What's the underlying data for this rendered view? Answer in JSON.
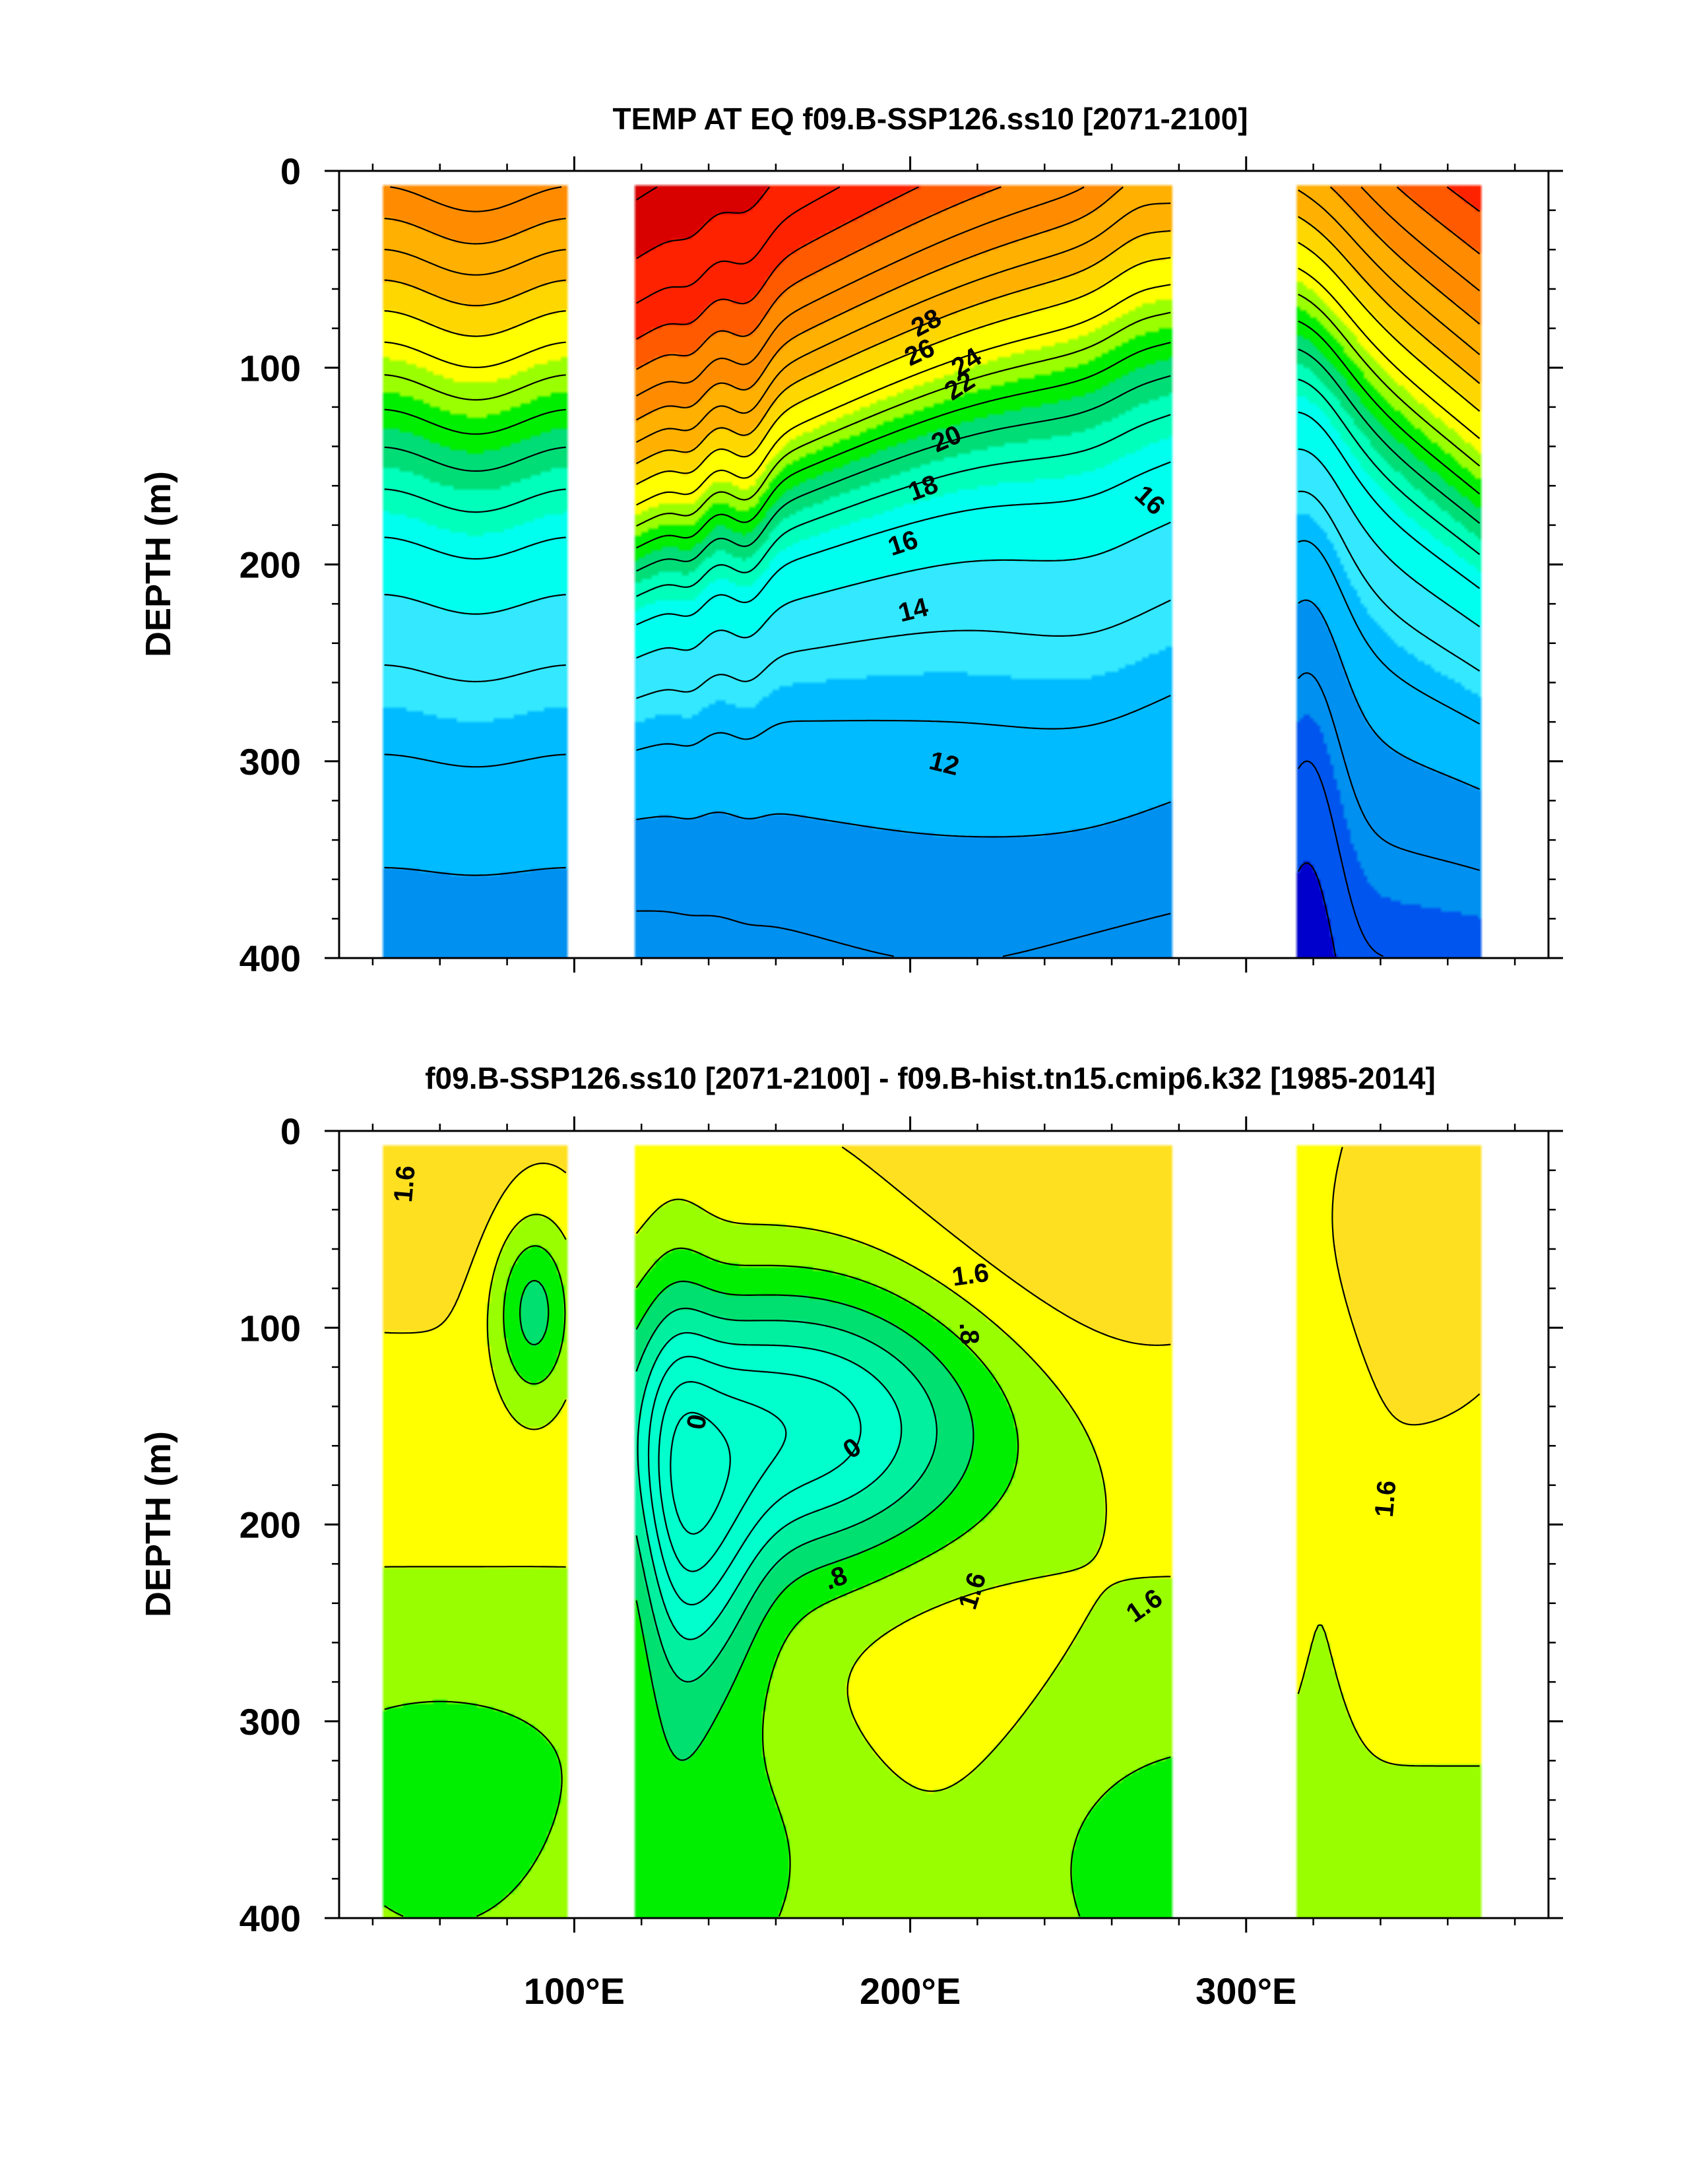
{
  "chart_data": [
    {
      "type": "contour",
      "title": "TEMP AT EQ f09.B-SSP126.ss10 [2071-2100]",
      "xlabel": "",
      "ylabel": "DEPTH (m)",
      "xlim": [
        30,
        390
      ],
      "ylim": [
        400,
        0
      ],
      "x_ticks": [
        100,
        200,
        300
      ],
      "x_tick_labels": [
        "100°E",
        "200°E",
        "300°E"
      ],
      "y_ticks": [
        0,
        100,
        200,
        300,
        400
      ],
      "y_tick_labels": [
        "0",
        "100",
        "200",
        "300",
        "400"
      ],
      "land_gaps": [
        [
          98,
          118
        ],
        [
          278,
          315
        ]
      ],
      "ocean_extent": [
        [
          43,
          98
        ],
        [
          118,
          278
        ],
        [
          315,
          370
        ]
      ],
      "contour_interval": 1,
      "contour_labels": [
        "28",
        "26",
        "24",
        "22",
        "20",
        "18",
        "16",
        "14",
        "12",
        "16"
      ],
      "color_stops": [
        {
          "value": 31,
          "color": "#b30000"
        },
        {
          "value": 29,
          "color": "#d90000"
        },
        {
          "value": 27,
          "color": "#ff2200"
        },
        {
          "value": 26,
          "color": "#ff5a00"
        },
        {
          "value": 24,
          "color": "#ff8c00"
        },
        {
          "value": 22,
          "color": "#ffb000"
        },
        {
          "value": 21,
          "color": "#ffd700"
        },
        {
          "value": 19.5,
          "color": "#ffff00"
        },
        {
          "value": 18.5,
          "color": "#9aff00"
        },
        {
          "value": 17.5,
          "color": "#00ee00"
        },
        {
          "value": 16.5,
          "color": "#00dd77"
        },
        {
          "value": 15.5,
          "color": "#00ffbb"
        },
        {
          "value": 14,
          "color": "#00ffee"
        },
        {
          "value": 12.5,
          "color": "#33e8ff"
        },
        {
          "value": 11,
          "color": "#00bbff"
        },
        {
          "value": 9.5,
          "color": "#0090f0"
        },
        {
          "value": 8,
          "color": "#0055ee"
        },
        {
          "value": 6.5,
          "color": "#0000cc"
        }
      ]
    },
    {
      "type": "contour",
      "title": "f09.B-SSP126.ss10 [2071-2100] - f09.B-hist.tn15.cmip6.k32 [1985-2014]",
      "xlabel": "",
      "ylabel": "DEPTH (m)",
      "xlim": [
        30,
        390
      ],
      "ylim": [
        400,
        0
      ],
      "x_ticks": [
        100,
        200,
        300
      ],
      "x_tick_labels": [
        "100°E",
        "200°E",
        "300°E"
      ],
      "y_ticks": [
        0,
        100,
        200,
        300,
        400
      ],
      "y_tick_labels": [
        "0",
        "100",
        "200",
        "300",
        "400"
      ],
      "land_gaps": [
        [
          98,
          118
        ],
        [
          278,
          315
        ]
      ],
      "ocean_extent": [
        [
          43,
          98
        ],
        [
          118,
          278
        ],
        [
          315,
          370
        ]
      ],
      "contour_interval": 0.4,
      "contour_labels": [
        "1.6",
        "1.6",
        ".8",
        "0",
        "0",
        ".8",
        "1.6",
        "1.6",
        "1.6"
      ],
      "color_stops": [
        {
          "value": -0.6,
          "color": "#00ffcc"
        },
        {
          "value": 0,
          "color": "#00f0a0"
        },
        {
          "value": 0.4,
          "color": "#00e070"
        },
        {
          "value": 0.8,
          "color": "#00ee00"
        },
        {
          "value": 1.2,
          "color": "#99ff00"
        },
        {
          "value": 1.6,
          "color": "#ffff00"
        },
        {
          "value": 2.0,
          "color": "#ffe020"
        },
        {
          "value": 2.4,
          "color": "#ffc840"
        },
        {
          "value": 2.8,
          "color": "#ffa030"
        }
      ]
    }
  ]
}
